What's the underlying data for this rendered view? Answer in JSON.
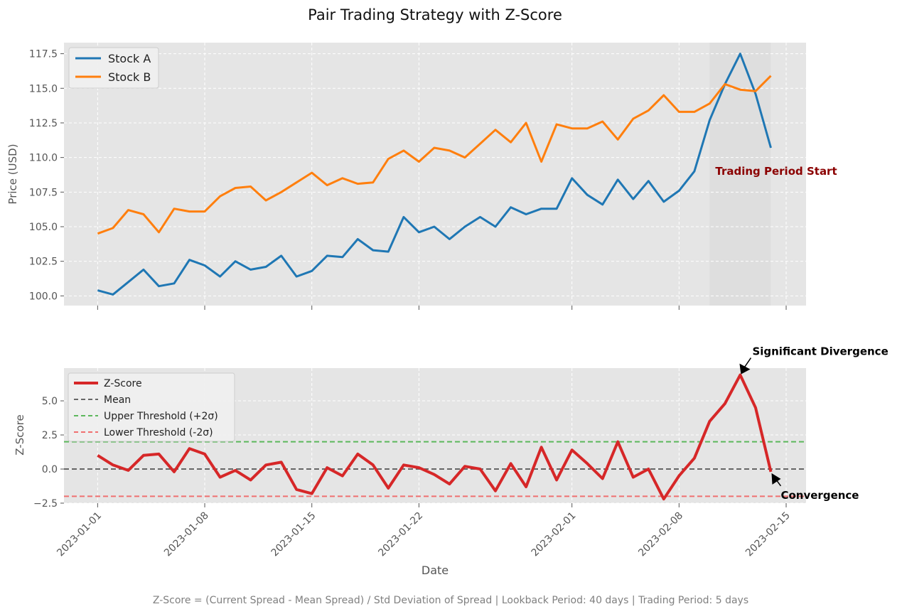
{
  "chart_data": {
    "type": "line",
    "suptitle": "Pair Trading Strategy with Z-Score",
    "footnote": "Z-Score = (Current Spread - Mean Spread) / Std Deviation of Spread | Lookback Period: 40 days | Trading Period: 5 days",
    "x_tick_labels": [
      "2023-01-01",
      "2023-01-08",
      "2023-01-15",
      "2023-01-22",
      "2023-02-01",
      "2023-02-08",
      "2023-02-15"
    ],
    "x_tick_days": [
      0,
      7,
      14,
      21,
      31,
      38,
      45
    ],
    "xlabel": "Date",
    "xlim": [
      -2.2,
      46.3
    ],
    "price_panel": {
      "ylabel": "Price (USD)",
      "ylim": [
        99.3,
        118.3
      ],
      "yticks": [
        100.0,
        102.5,
        105.0,
        107.5,
        110.0,
        112.5,
        115.0,
        117.5
      ],
      "ytick_labels": [
        "100.0",
        "102.5",
        "105.0",
        "107.5",
        "110.0",
        "112.5",
        "115.0",
        "117.5"
      ],
      "shaded_period": [
        40,
        44
      ],
      "shade_color": "#dcdcdc",
      "annotation": {
        "text": "Trading Period Start",
        "color": "#8b0000",
        "at_day": 40,
        "at_value": 109.0
      },
      "series": [
        {
          "name": "Stock A",
          "color": "#1f77b4",
          "values": [
            100.4,
            100.1,
            101.0,
            101.9,
            100.7,
            100.9,
            102.6,
            102.2,
            101.4,
            102.5,
            101.9,
            102.1,
            102.9,
            101.4,
            101.8,
            102.9,
            102.8,
            104.1,
            103.3,
            103.2,
            105.7,
            104.6,
            105.0,
            104.1,
            105.0,
            105.7,
            105.0,
            106.4,
            105.9,
            106.3,
            106.3,
            108.5,
            107.3,
            106.6,
            108.4,
            107.0,
            108.3,
            106.8,
            107.6,
            109.0,
            112.7,
            115.3,
            117.5,
            114.6,
            110.7
          ]
        },
        {
          "name": "Stock B",
          "color": "#ff7f0e",
          "values": [
            104.5,
            104.9,
            106.2,
            105.9,
            104.6,
            106.3,
            106.1,
            106.1,
            107.2,
            107.8,
            107.9,
            106.9,
            107.5,
            108.2,
            108.9,
            108.0,
            108.5,
            108.1,
            108.2,
            109.9,
            110.5,
            109.7,
            110.7,
            110.5,
            110.0,
            111.0,
            112.0,
            111.1,
            112.5,
            109.7,
            112.4,
            112.1,
            112.1,
            112.6,
            111.3,
            112.8,
            113.4,
            114.5,
            113.3,
            113.3,
            113.9,
            115.3,
            114.9,
            114.8,
            115.9
          ]
        }
      ]
    },
    "zscore_panel": {
      "ylabel": "Z-Score",
      "ylim": [
        -2.5,
        7.4
      ],
      "yticks": [
        -2.5,
        0.0,
        2.5,
        5.0
      ],
      "ytick_labels": [
        "−2.5",
        "0.0",
        "2.5",
        "5.0"
      ],
      "series": [
        {
          "name": "Z-Score",
          "color": "#d62728",
          "values": [
            1.0,
            0.3,
            -0.1,
            1.0,
            1.1,
            -0.2,
            1.5,
            1.1,
            -0.6,
            -0.1,
            -0.8,
            0.3,
            0.5,
            -1.5,
            -1.8,
            0.1,
            -0.5,
            1.1,
            0.3,
            -1.4,
            0.3,
            0.1,
            -0.4,
            -1.1,
            0.2,
            0.0,
            -1.6,
            0.4,
            -1.3,
            1.6,
            -0.8,
            1.4,
            0.4,
            -0.7,
            2.0,
            -0.6,
            0.0,
            -2.2,
            -0.5,
            0.8,
            3.5,
            4.8,
            6.9,
            4.5,
            -0.2
          ]
        }
      ],
      "lines": [
        {
          "name": "Mean",
          "value": 0.0,
          "color": "#666666"
        },
        {
          "name": "Upper Threshold (+2σ)",
          "value": 2.0,
          "color": "#5cb85c"
        },
        {
          "name": "Lower Threshold (-2σ)",
          "value": -2.0,
          "color": "#f07070"
        }
      ],
      "annotations": [
        {
          "text": "Significant Divergence",
          "at_day": 42,
          "at_value": 6.9
        },
        {
          "text": "Convergence",
          "at_day": 44,
          "at_value": -0.2
        }
      ]
    }
  }
}
